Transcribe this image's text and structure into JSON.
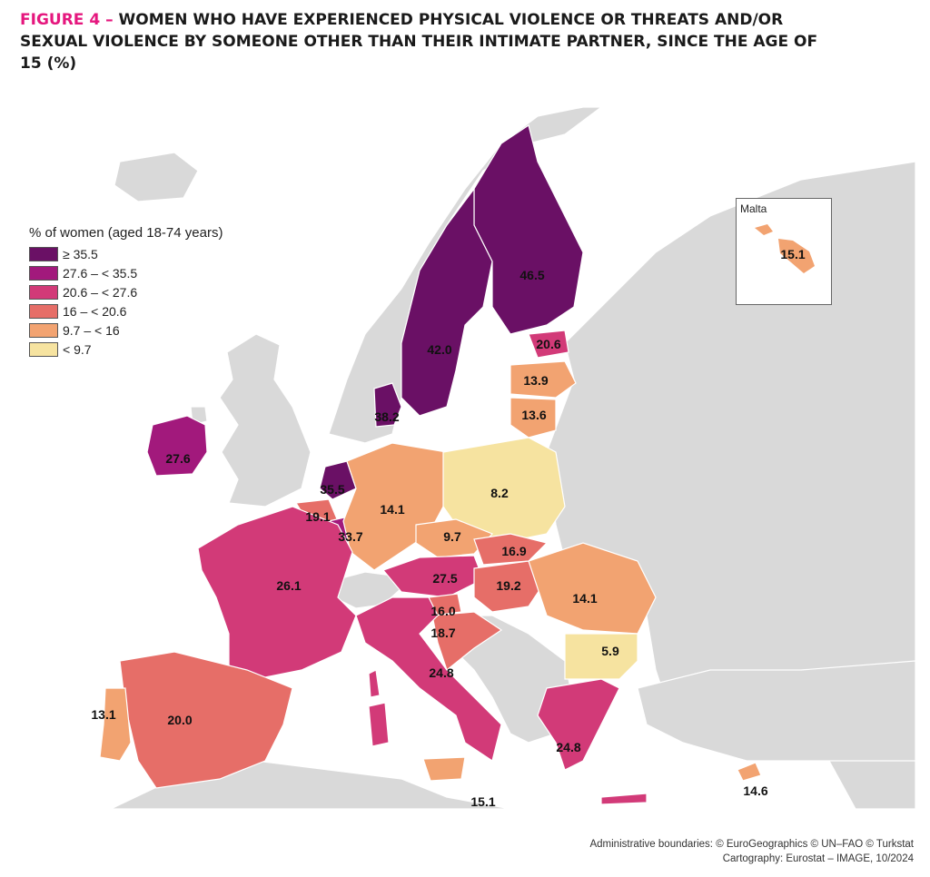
{
  "figure": {
    "number_label": "FIGURE 4 –",
    "title": "WOMEN WHO HAVE EXPERIENCED PHYSICAL VIOLENCE OR THREATS AND/OR SEXUAL VIOLENCE BY SOMEONE OTHER THAN THEIR INTIMATE PARTNER, SINCE THE AGE OF 15 (%)"
  },
  "legend": {
    "title": "% of women (aged 18-74 years)",
    "classes": [
      {
        "label": "≥ 35.5",
        "color": "#6a1065"
      },
      {
        "label": "27.6 – < 35.5",
        "color": "#a2197c"
      },
      {
        "label": "20.6 – < 27.6",
        "color": "#d23a78"
      },
      {
        "label": "16 – < 20.6",
        "color": "#e66e68"
      },
      {
        "label": "9.7 – < 16",
        "color": "#f2a371"
      },
      {
        "label": "< 9.7",
        "color": "#f6e3a0"
      }
    ]
  },
  "colors": {
    "no_data": "#d9d9d9",
    "sea": "#ffffff",
    "border": "#ffffff"
  },
  "inset": {
    "title": "Malta",
    "value": "15.1"
  },
  "regions": [
    {
      "name": "Finland",
      "value": "46.5"
    },
    {
      "name": "Sweden",
      "value": "42.0"
    },
    {
      "name": "Denmark",
      "value": "38.2"
    },
    {
      "name": "Netherlands",
      "value": "35.5"
    },
    {
      "name": "Belgium",
      "value": "19.1"
    },
    {
      "name": "Luxembourg",
      "value": "33.7"
    },
    {
      "name": "Ireland",
      "value": "27.6"
    },
    {
      "name": "Estonia",
      "value": "20.6"
    },
    {
      "name": "Latvia",
      "value": "13.9"
    },
    {
      "name": "Lithuania",
      "value": "13.6"
    },
    {
      "name": "Germany",
      "value": "14.1"
    },
    {
      "name": "Poland",
      "value": "8.2"
    },
    {
      "name": "Czechia",
      "value": "9.7"
    },
    {
      "name": "Slovakia",
      "value": "16.9"
    },
    {
      "name": "Austria",
      "value": "27.5"
    },
    {
      "name": "Hungary",
      "value": "19.2"
    },
    {
      "name": "Slovenia",
      "value": "16.0"
    },
    {
      "name": "Croatia",
      "value": "18.7"
    },
    {
      "name": "Romania",
      "value": "14.1"
    },
    {
      "name": "Bulgaria",
      "value": "5.9"
    },
    {
      "name": "France",
      "value": "26.1"
    },
    {
      "name": "Italy",
      "value": "24.8"
    },
    {
      "name": "Sicily",
      "value": "15.1"
    },
    {
      "name": "Spain",
      "value": "20.0"
    },
    {
      "name": "Portugal",
      "value": "13.1"
    },
    {
      "name": "Greece",
      "value": "24.8"
    },
    {
      "name": "Cyprus",
      "value": "14.6"
    }
  ],
  "credits": {
    "line1": "Administrative boundaries: © EuroGeographics © UN–FAO © Turkstat",
    "line2": "Cartography: Eurostat – IMAGE, 10/2024"
  }
}
